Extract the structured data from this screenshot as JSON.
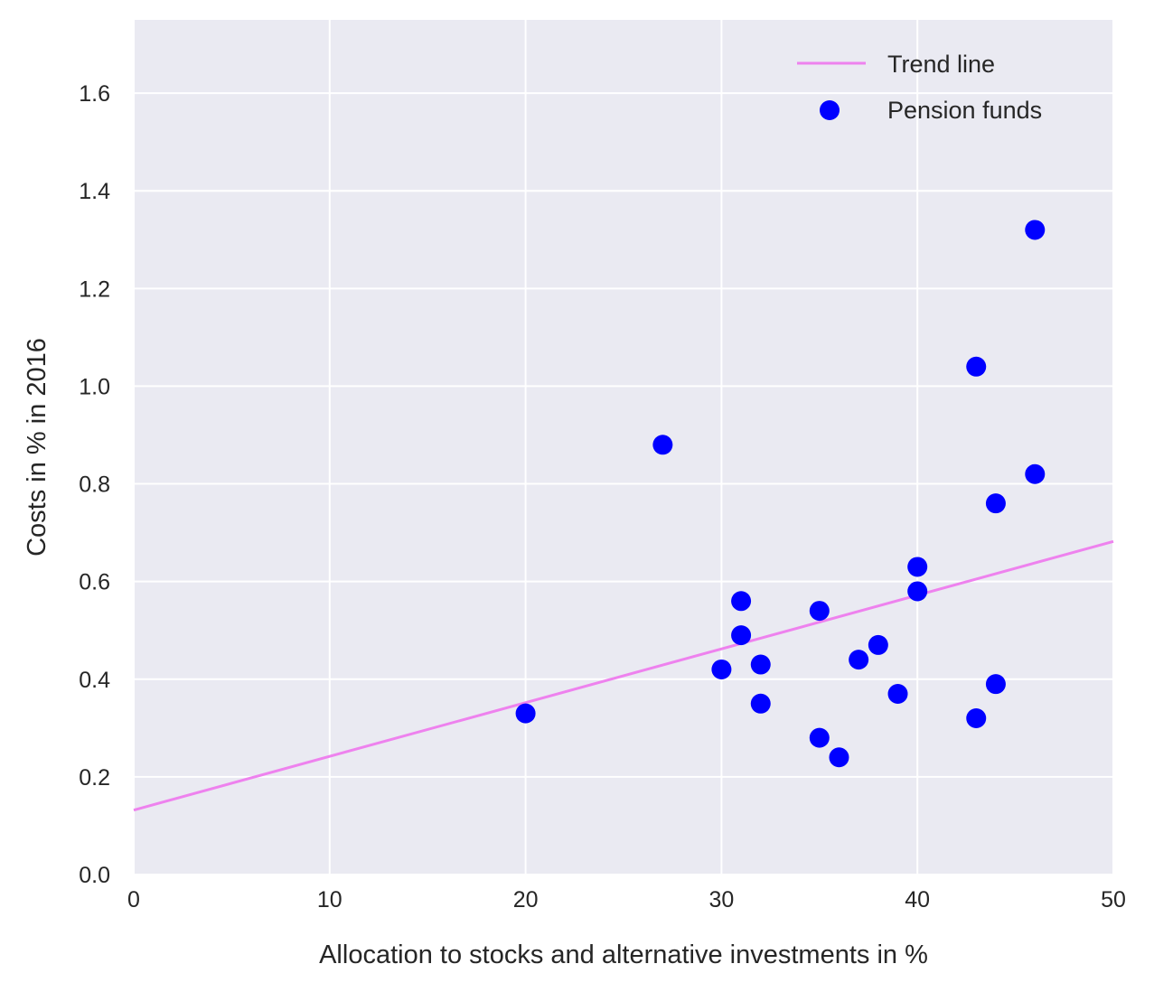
{
  "chart_data": {
    "type": "scatter",
    "title": "",
    "xlabel": "Allocation to stocks and alternative investments in %",
    "ylabel": "Costs in % in 2016",
    "xlim": [
      0,
      50
    ],
    "ylim": [
      0,
      1.75
    ],
    "xticks": [
      "0",
      "10",
      "20",
      "30",
      "40",
      "50"
    ],
    "yticks": [
      "0.0",
      "0.2",
      "0.4",
      "0.6",
      "0.8",
      "1.0",
      "1.2",
      "1.4",
      "1.6"
    ],
    "grid": true,
    "legend_position": "top-right",
    "background_color": "#eaeaf2",
    "grid_color": "#ffffff",
    "series": [
      {
        "name": "Pension funds",
        "kind": "scatter",
        "color": "#0000ff",
        "points": [
          {
            "x": 20,
            "y": 0.33
          },
          {
            "x": 27,
            "y": 0.88
          },
          {
            "x": 30,
            "y": 0.42
          },
          {
            "x": 31,
            "y": 0.56
          },
          {
            "x": 31,
            "y": 0.49
          },
          {
            "x": 32,
            "y": 0.43
          },
          {
            "x": 32,
            "y": 0.35
          },
          {
            "x": 35,
            "y": 0.54
          },
          {
            "x": 35,
            "y": 0.28
          },
          {
            "x": 36,
            "y": 0.24
          },
          {
            "x": 37,
            "y": 0.44
          },
          {
            "x": 38,
            "y": 0.47
          },
          {
            "x": 39,
            "y": 0.37
          },
          {
            "x": 40,
            "y": 0.63
          },
          {
            "x": 40,
            "y": 0.58
          },
          {
            "x": 43,
            "y": 1.04
          },
          {
            "x": 43,
            "y": 0.32
          },
          {
            "x": 44,
            "y": 0.76
          },
          {
            "x": 44,
            "y": 0.39
          },
          {
            "x": 46,
            "y": 1.32
          },
          {
            "x": 46,
            "y": 0.82
          }
        ]
      },
      {
        "name": "Trend line",
        "kind": "line",
        "color": "#ee82ee",
        "points": [
          {
            "x": 0,
            "y": 0.132
          },
          {
            "x": 50,
            "y": 0.682
          }
        ]
      }
    ]
  }
}
